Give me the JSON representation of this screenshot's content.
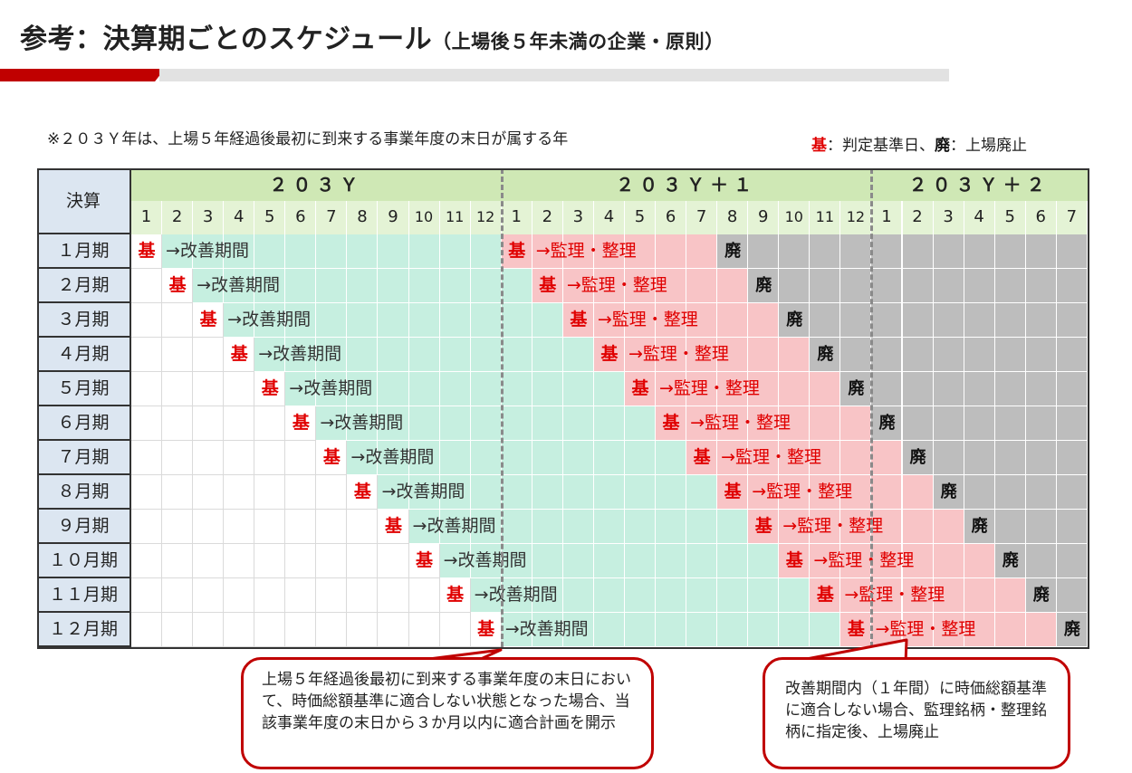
{
  "title": "参考：決算期ごとのスケジュール",
  "subtitle": "（上場後５年未満の企業・原則）",
  "note": "※２０３Ｙ年は、上場５年経過後最初に到来する事業年度の末日が属する年",
  "legend": {
    "kijun_char": "基",
    "kijun_text": "：判定基準日、",
    "haishi_char": "廃",
    "haishi_text": "：上場廃止"
  },
  "table": {
    "corner": "決算",
    "years": [
      {
        "label": "２０３Ｙ",
        "months": [
          "1",
          "2",
          "3",
          "4",
          "5",
          "6",
          "7",
          "8",
          "9",
          "10",
          "11",
          "12"
        ]
      },
      {
        "label": "２０３Ｙ＋１",
        "months": [
          "1",
          "2",
          "3",
          "4",
          "5",
          "6",
          "7",
          "8",
          "9",
          "10",
          "11",
          "12"
        ]
      },
      {
        "label": "２０３Ｙ＋２",
        "months": [
          "1",
          "2",
          "3",
          "4",
          "5",
          "6",
          "7"
        ]
      }
    ],
    "rows": [
      "１月期",
      "２月期",
      "３月期",
      "４月期",
      "５月期",
      "６月期",
      "７月期",
      "８月期",
      "９月期",
      "１０月期",
      "１１月期",
      "１２月期"
    ],
    "kijun": "基",
    "kaizen": "→改善期間",
    "kanri": "→監理・整理",
    "haishi": "廃"
  },
  "colors": {
    "kaizen": "#c6efe0",
    "kanri": "#f8c4c6",
    "delisted": "#bdbdbd",
    "mark": "#e00000",
    "accent": "#c00000"
  },
  "callouts": [
    "上場５年経過後最初に到来する事業年度の末日において、時価総額基準に適合しない状態となった場合、当該事業年度の末日から３か月以内に適合計画を開示",
    "改善期間内（１年間）に時価総額基準に適合しない場合、監理銘柄・整理銘柄に指定後、上場廃止"
  ]
}
